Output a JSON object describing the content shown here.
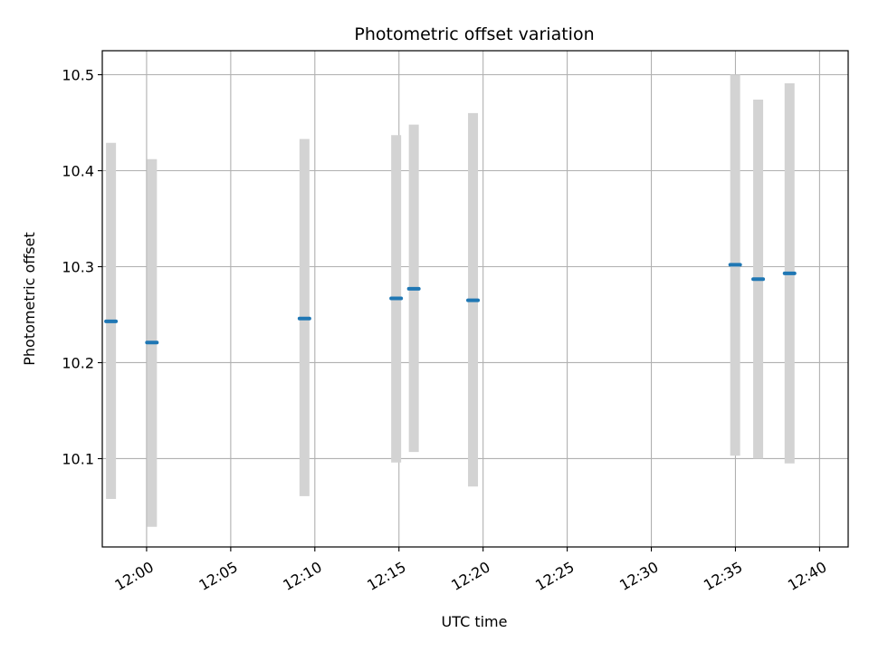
{
  "chart_data": {
    "type": "scatter",
    "title": "Photometric offset variation",
    "xlabel": "UTC time",
    "ylabel": "Photometric offset",
    "x_ticks": [
      "12:00",
      "12:05",
      "12:10",
      "12:15",
      "12:20",
      "12:25",
      "12:30",
      "12:35",
      "12:40"
    ],
    "xlim": [
      "11:57:22",
      "12:41:42"
    ],
    "y_ticks": [
      "10.1",
      "10.2",
      "10.3",
      "10.4",
      "10.5"
    ],
    "ylim": [
      10.008,
      10.525
    ],
    "grid": true,
    "errorbar_color": "#d3d3d3",
    "marker_color": "#1f77b4",
    "points": [
      {
        "time": "11:57:53",
        "value": 10.243,
        "low": 10.058,
        "high": 10.429
      },
      {
        "time": "12:00:19",
        "value": 10.221,
        "low": 10.029,
        "high": 10.412
      },
      {
        "time": "12:09:23",
        "value": 10.246,
        "low": 10.061,
        "high": 10.433
      },
      {
        "time": "12:14:50",
        "value": 10.267,
        "low": 10.096,
        "high": 10.437
      },
      {
        "time": "12:15:53",
        "value": 10.277,
        "low": 10.107,
        "high": 10.448
      },
      {
        "time": "12:19:24",
        "value": 10.265,
        "low": 10.071,
        "high": 10.46
      },
      {
        "time": "12:34:59",
        "value": 10.302,
        "low": 10.103,
        "high": 10.5
      },
      {
        "time": "12:36:21",
        "value": 10.287,
        "low": 10.1,
        "high": 10.474
      },
      {
        "time": "12:38:13",
        "value": 10.293,
        "low": 10.095,
        "high": 10.491
      }
    ]
  }
}
